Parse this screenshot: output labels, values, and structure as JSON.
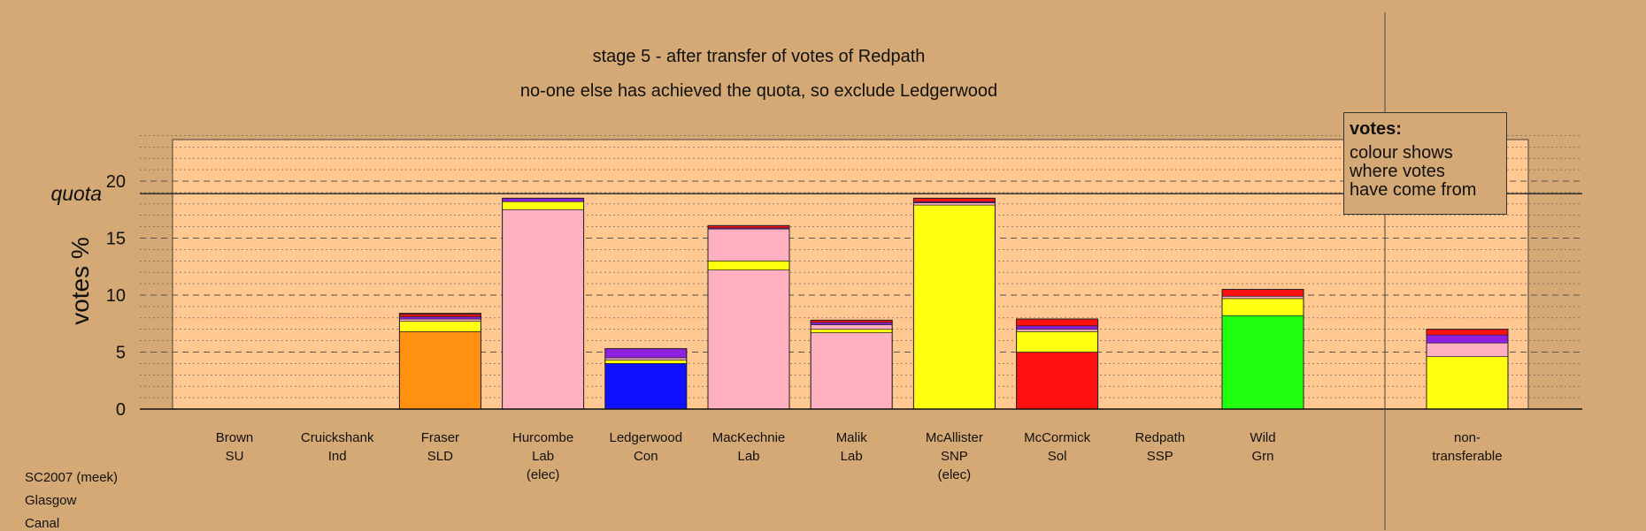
{
  "chart_data": {
    "type": "bar",
    "stacked": true,
    "title": "stage 5 - after transfer of votes of Redpath",
    "subtitle": "no-one else has achieved the quota, so exclude Ledgerwood",
    "ylabel": "votes %",
    "xlabel": "",
    "ylim": [
      0,
      24
    ],
    "yticks": [
      0,
      5,
      10,
      15,
      20
    ],
    "quota_label": "quota",
    "quota": 18.9,
    "grid": true,
    "categories": [
      {
        "name": "Brown",
        "party": "SU",
        "note": ""
      },
      {
        "name": "Cruickshank",
        "party": "Ind",
        "note": ""
      },
      {
        "name": "Fraser",
        "party": "SLD",
        "note": ""
      },
      {
        "name": "Hurcombe",
        "party": "Lab",
        "note": "(elec)"
      },
      {
        "name": "Ledgerwood",
        "party": "Con",
        "note": ""
      },
      {
        "name": "MacKechnie",
        "party": "Lab",
        "note": ""
      },
      {
        "name": "Malik",
        "party": "Lab",
        "note": ""
      },
      {
        "name": "McAllister",
        "party": "SNP",
        "note": "(elec)"
      },
      {
        "name": "McCormick",
        "party": "Sol",
        "note": ""
      },
      {
        "name": "Redpath",
        "party": "SSP",
        "note": ""
      },
      {
        "name": "Wild",
        "party": "Grn",
        "note": ""
      },
      {
        "name": "non-",
        "party": "transferable",
        "note": ""
      }
    ],
    "bars": [
      {
        "index": 0,
        "segments": []
      },
      {
        "index": 1,
        "segments": []
      },
      {
        "index": 2,
        "segments": [
          {
            "color": "#ff9010",
            "value": 6.8
          },
          {
            "color": "#ffff10",
            "value": 0.9
          },
          {
            "color": "#ffb0c0",
            "value": 0.2
          },
          {
            "color": "#9020e0",
            "value": 0.2
          },
          {
            "color": "#ff1010",
            "value": 0.2
          },
          {
            "color": "#ff1010",
            "value": 0.1
          }
        ]
      },
      {
        "index": 3,
        "segments": [
          {
            "color": "#ffb0c0",
            "value": 17.5
          },
          {
            "color": "#ffff10",
            "value": 0.7
          },
          {
            "color": "#9020e0",
            "value": 0.3
          }
        ]
      },
      {
        "index": 4,
        "segments": [
          {
            "color": "#1010ff",
            "value": 4.0
          },
          {
            "color": "#ffff10",
            "value": 0.3
          },
          {
            "color": "#ffb0c0",
            "value": 0.2
          },
          {
            "color": "#9020e0",
            "value": 0.8
          }
        ]
      },
      {
        "index": 5,
        "segments": [
          {
            "color": "#ffb0c0",
            "value": 12.2
          },
          {
            "color": "#ffff10",
            "value": 0.8
          },
          {
            "color": "#ffb0c0",
            "value": 2.8
          },
          {
            "color": "#9020e0",
            "value": 0.1
          },
          {
            "color": "#ff1010",
            "value": 0.2
          }
        ]
      },
      {
        "index": 6,
        "segments": [
          {
            "color": "#ffb0c0",
            "value": 6.7
          },
          {
            "color": "#ffff10",
            "value": 0.3
          },
          {
            "color": "#ffb0c0",
            "value": 0.4
          },
          {
            "color": "#9020e0",
            "value": 0.2
          },
          {
            "color": "#ff1010",
            "value": 0.2
          }
        ]
      },
      {
        "index": 7,
        "segments": [
          {
            "color": "#ffff10",
            "value": 17.9
          },
          {
            "color": "#ffb0c0",
            "value": 0.2
          },
          {
            "color": "#9020e0",
            "value": 0.1
          },
          {
            "color": "#ff1010",
            "value": 0.3
          }
        ]
      },
      {
        "index": 8,
        "segments": [
          {
            "color": "#ff1010",
            "value": 5.0
          },
          {
            "color": "#ffff10",
            "value": 1.8
          },
          {
            "color": "#ffb0c0",
            "value": 0.2
          },
          {
            "color": "#9020e0",
            "value": 0.3
          },
          {
            "color": "#ff1010",
            "value": 0.6
          }
        ]
      },
      {
        "index": 9,
        "segments": []
      },
      {
        "index": 10,
        "segments": [
          {
            "color": "#20ff10",
            "value": 8.2
          },
          {
            "color": "#ffff10",
            "value": 1.5
          },
          {
            "color": "#ffb0c0",
            "value": 0.2
          },
          {
            "color": "#ff1010",
            "value": 0.6
          }
        ]
      },
      {
        "index": 11,
        "segments": [
          {
            "color": "#ffff10",
            "value": 4.6
          },
          {
            "color": "#ffb0c0",
            "value": 1.2
          },
          {
            "color": "#9020e0",
            "value": 0.7
          },
          {
            "color": "#ff1010",
            "value": 0.5
          }
        ]
      }
    ],
    "legend": {
      "title": "votes:",
      "lines": [
        "colour shows",
        "where votes",
        "have come from"
      ],
      "position": "top-right"
    },
    "colors": {
      "background": "#d5a975",
      "plot_background": "#ffc890"
    }
  },
  "footer": {
    "line1": "SC2007 (meek)",
    "line2": "Glasgow",
    "line3": "Canal"
  }
}
